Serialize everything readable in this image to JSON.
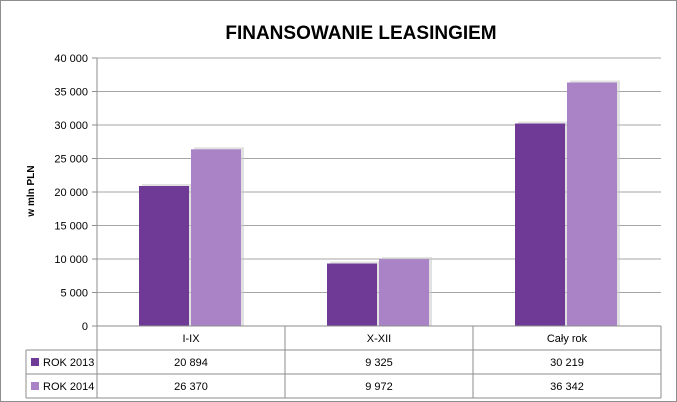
{
  "chart_data": {
    "type": "bar",
    "title": "FINANSOWANIE LEASINGIEM",
    "xlabel": "",
    "ylabel": "w mln PLN",
    "ylim": [
      0,
      40000
    ],
    "yticks": [
      0,
      5000,
      10000,
      15000,
      20000,
      25000,
      30000,
      35000,
      40000
    ],
    "ytick_labels": [
      "0",
      "5 000",
      "10 000",
      "15 000",
      "20 000",
      "25 000",
      "30 000",
      "35 000",
      "40 000"
    ],
    "grid": true,
    "legend": "data-table",
    "categories": [
      "I-IX",
      "X-XII",
      "Cały rok"
    ],
    "series": [
      {
        "name": "ROK 2013",
        "color": "#6f3a96",
        "values": [
          20894,
          9325,
          30219
        ],
        "labels": [
          "20 894",
          "9 325",
          "30 219"
        ]
      },
      {
        "name": "ROK 2014",
        "color": "#a983c6",
        "values": [
          26370,
          9972,
          36342
        ],
        "labels": [
          "26 370",
          "9 972",
          "36 342"
        ]
      }
    ]
  }
}
